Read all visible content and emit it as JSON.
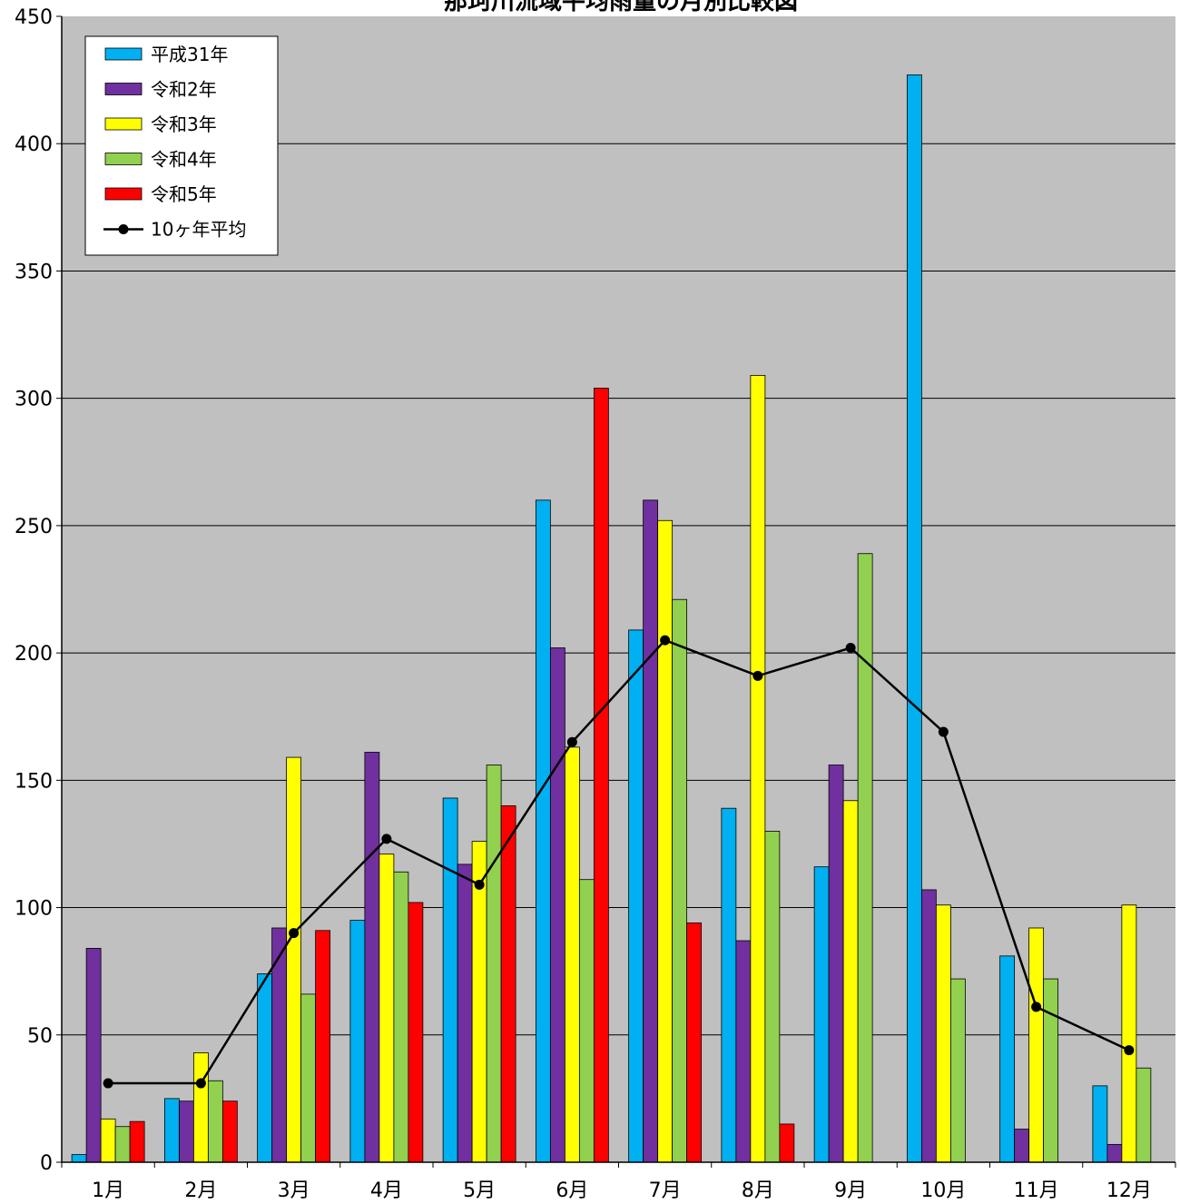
{
  "chart_data": {
    "type": "bar",
    "title": "那珂川流域平均雨量の月別比較図",
    "xlabel": "",
    "ylabel": "",
    "ylim": [
      0,
      450
    ],
    "yticks": [
      0,
      50,
      100,
      150,
      200,
      250,
      300,
      350,
      400,
      450
    ],
    "grid": true,
    "legend_position": "top-left",
    "categories": [
      "1月",
      "2月",
      "3月",
      "4月",
      "5月",
      "6月",
      "7月",
      "8月",
      "9月",
      "10月",
      "11月",
      "12月"
    ],
    "series": [
      {
        "name": "平成31年",
        "color": "#00b0f0",
        "values": [
          3,
          25,
          74,
          95,
          143,
          260,
          209,
          139,
          116,
          427,
          81,
          30
        ]
      },
      {
        "name": "令和2年",
        "color": "#7030a0",
        "values": [
          84,
          24,
          92,
          161,
          117,
          202,
          260,
          87,
          156,
          107,
          13,
          7
        ]
      },
      {
        "name": "令和3年",
        "color": "#ffff00",
        "values": [
          17,
          43,
          159,
          121,
          126,
          163,
          252,
          309,
          142,
          101,
          92,
          101
        ]
      },
      {
        "name": "令和4年",
        "color": "#92d050",
        "values": [
          14,
          32,
          66,
          114,
          156,
          111,
          221,
          130,
          239,
          72,
          72,
          37
        ]
      },
      {
        "name": "令和5年",
        "color": "#ff0000",
        "values": [
          16,
          24,
          91,
          102,
          140,
          304,
          94,
          15,
          null,
          null,
          null,
          null
        ]
      }
    ],
    "line_series": {
      "name": "10ヶ年平均",
      "color": "#000000",
      "values": [
        31,
        31,
        90,
        127,
        109,
        165,
        205,
        191,
        202,
        169,
        61,
        44
      ]
    }
  }
}
